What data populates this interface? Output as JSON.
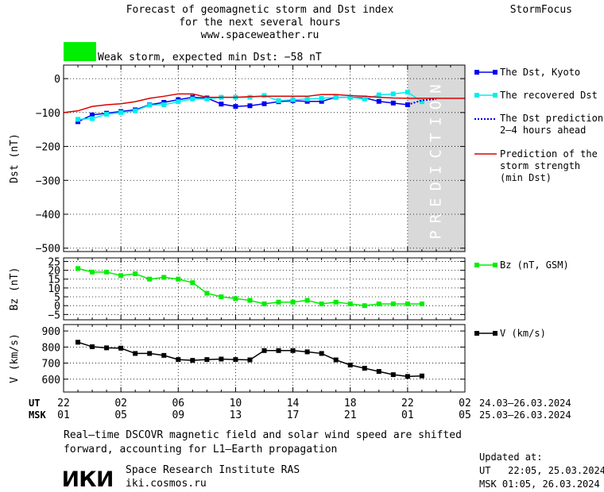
{
  "header": {
    "title_lines": [
      "Forecast of geomagnetic storm and Dst index",
      "for the next several hours",
      "www.spaceweather.ru"
    ],
    "brand": "StormFocus",
    "storm_label": "Weak storm, expected min Dst: −58 nT",
    "storm_color": "#00ee00"
  },
  "colors": {
    "dst_kyoto": "#0000ee",
    "dst_recovered": "#00eeee",
    "dst_prediction": "#0000ee",
    "storm_strength": "#dd0000",
    "bz": "#00ee00",
    "v": "#000000",
    "prediction_band": "#d9d9d9"
  },
  "chart_data": [
    {
      "type": "line",
      "ylabel": "Dst (nT)",
      "ylim": [
        -510,
        40
      ],
      "yticks": [
        0,
        -100,
        -200,
        -300,
        -400,
        -500
      ],
      "ytick_labels": [
        "0",
        "−100",
        "−200",
        "−300",
        "−400",
        "−500"
      ],
      "xlim": [
        0,
        28
      ],
      "prediction_band": {
        "from": 24,
        "to": 28,
        "label": "PREDICTION"
      },
      "series": [
        {
          "name": "The Dst, Kyoto",
          "style": "line-square",
          "x": [
            1,
            2,
            3,
            4,
            5,
            6,
            7,
            8,
            9,
            10,
            11,
            12,
            13,
            14,
            15,
            16,
            17,
            18,
            19,
            20,
            21,
            22,
            23,
            24
          ],
          "y": [
            -127,
            -107,
            -102,
            -97,
            -92,
            -77,
            -70,
            -62,
            -55,
            -57,
            -75,
            -82,
            -80,
            -74,
            -68,
            -65,
            -67,
            -67,
            -55,
            -55,
            -57,
            -67,
            -72,
            -77
          ]
        },
        {
          "name": "The recovered Dst",
          "style": "line-square",
          "x": [
            1,
            2,
            3,
            4,
            5,
            6,
            7,
            8,
            9,
            10,
            11,
            12,
            13,
            14,
            15,
            16,
            17,
            18,
            19,
            20,
            21,
            22,
            23,
            24,
            25
          ],
          "y": [
            -120,
            -118,
            -105,
            -100,
            -95,
            -78,
            -77,
            -68,
            -60,
            -60,
            -55,
            -55,
            -55,
            -50,
            -65,
            -62,
            -60,
            -58,
            -55,
            -55,
            -60,
            -48,
            -45,
            -40,
            -68
          ]
        },
        {
          "name": "The Dst prediction 2–4 hours ahead",
          "style": "dotted",
          "x": [
            24,
            25,
            26
          ],
          "y": [
            -77,
            -64,
            -60
          ]
        },
        {
          "name": "Prediction of the storm strength (min Dst)",
          "style": "line",
          "x": [
            0,
            1,
            2,
            3,
            4,
            5,
            6,
            7,
            8,
            9,
            10,
            11,
            12,
            13,
            14,
            15,
            16,
            17,
            18,
            19,
            20,
            21,
            22,
            23,
            24,
            25,
            26,
            27,
            28
          ],
          "y": [
            -100,
            -95,
            -82,
            -77,
            -74,
            -68,
            -58,
            -52,
            -45,
            -45,
            -55,
            -55,
            -55,
            -53,
            -52,
            -52,
            -52,
            -52,
            -47,
            -47,
            -50,
            -52,
            -55,
            -57,
            -58,
            -58,
            -58,
            -58,
            -58
          ]
        }
      ]
    },
    {
      "type": "line",
      "ylabel": "Bz (nT)",
      "ylim": [
        -8,
        27
      ],
      "yticks": [
        25,
        20,
        15,
        10,
        5,
        0,
        -5
      ],
      "ytick_labels": [
        "25",
        "20",
        "15",
        "10",
        "5",
        "0",
        "−5"
      ],
      "xlim": [
        0,
        28
      ],
      "series": [
        {
          "name": "Bz (nT, GSM)",
          "style": "line-square",
          "x": [
            1,
            2,
            3,
            4,
            5,
            6,
            7,
            8,
            9,
            10,
            11,
            12,
            13,
            14,
            15,
            16,
            17,
            18,
            19,
            20,
            21,
            22,
            23,
            24,
            25
          ],
          "y": [
            21,
            19,
            19,
            17,
            18,
            15,
            16,
            15,
            13,
            7,
            5,
            4,
            3,
            1,
            2,
            2,
            3,
            1,
            2,
            1,
            0,
            1,
            1,
            1,
            1
          ]
        }
      ]
    },
    {
      "type": "line",
      "ylabel": "V (km/s)",
      "ylim": [
        520,
        940
      ],
      "yticks": [
        900,
        800,
        700,
        600
      ],
      "ytick_labels": [
        "900",
        "800",
        "700",
        "600"
      ],
      "xlim": [
        0,
        28
      ],
      "series": [
        {
          "name": "V (km/s)",
          "style": "line-square",
          "x": [
            1,
            2,
            3,
            4,
            5,
            6,
            7,
            8,
            9,
            10,
            11,
            12,
            13,
            14,
            15,
            16,
            17,
            18,
            19,
            20,
            21,
            22,
            23,
            24,
            25
          ],
          "y": [
            830,
            802,
            795,
            793,
            760,
            760,
            748,
            722,
            717,
            722,
            725,
            722,
            720,
            778,
            778,
            778,
            770,
            760,
            720,
            688,
            668,
            648,
            628,
            617,
            620
          ]
        }
      ]
    }
  ],
  "x_axis": {
    "ut_label": "UT",
    "msk_label": "MSK",
    "ticks": [
      {
        "x": 0,
        "ut": "22",
        "msk": "01"
      },
      {
        "x": 4,
        "ut": "02",
        "msk": "05"
      },
      {
        "x": 8,
        "ut": "06",
        "msk": "09"
      },
      {
        "x": 12,
        "ut": "10",
        "msk": "13"
      },
      {
        "x": 16,
        "ut": "14",
        "msk": "17"
      },
      {
        "x": 20,
        "ut": "18",
        "msk": "21"
      },
      {
        "x": 24,
        "ut": "22",
        "msk": "01"
      },
      {
        "x": 28,
        "ut": "02",
        "msk": "05"
      }
    ],
    "ut_range": "24.03–26.03.2024",
    "msk_range": "25.03–26.03.2024"
  },
  "legend": {
    "kyoto": "The Dst, Kyoto",
    "recovered": "The recovered Dst",
    "prediction_lines": [
      "The Dst prediction",
      "2–4 hours ahead"
    ],
    "strength_lines": [
      "Prediction of the",
      "storm strength",
      "(min Dst)"
    ],
    "bz": "Bz (nT, GSM)",
    "v": "V (km/s)"
  },
  "footer": {
    "note_lines": [
      "Real–time DSCOVR magnetic field and solar wind speed are shifted",
      "forward, accounting for L1–Earth propagation"
    ],
    "logo_text": "ИКИ",
    "institute": "Space Research Institute RAS",
    "site": "iki.cosmos.ru",
    "updated_label": "Updated at:",
    "updated_ut": "UT   22:05, 25.03.2024",
    "updated_msk": "MSK 01:05, 26.03.2024"
  }
}
